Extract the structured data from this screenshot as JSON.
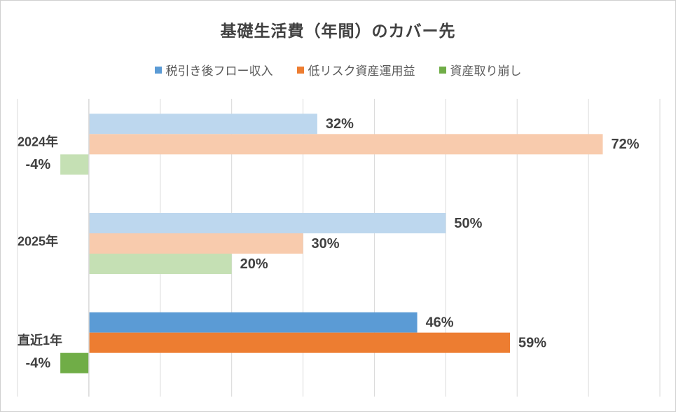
{
  "chart_data": {
    "type": "bar",
    "orientation": "horizontal",
    "title": "基礎生活費（年間）のカバー先",
    "categories": [
      "2024年",
      "2025年",
      "直近1年"
    ],
    "series": [
      {
        "name": "税引き後フロー収入",
        "values": [
          32,
          50,
          46
        ],
        "color": "#5b9bd5",
        "faded_color": "#bdd7ee"
      },
      {
        "name": "低リスク資産運用益",
        "values": [
          72,
          30,
          59
        ],
        "color": "#ed7d31",
        "faded_color": "#f8cbad"
      },
      {
        "name": "資産取り崩し",
        "values": [
          -4,
          20,
          -4
        ],
        "color": "#70ad47",
        "faded_color": "#c5e0b4"
      }
    ],
    "data_labels": [
      [
        "32%",
        "72%",
        "-4%"
      ],
      [
        "50%",
        "30%",
        "20%"
      ],
      [
        "46%",
        "59%",
        "-4%"
      ]
    ],
    "highlighted_category": "直近1年",
    "xlim": [
      -10,
      80
    ],
    "gridlines": "vertical",
    "legend_position": "top"
  }
}
